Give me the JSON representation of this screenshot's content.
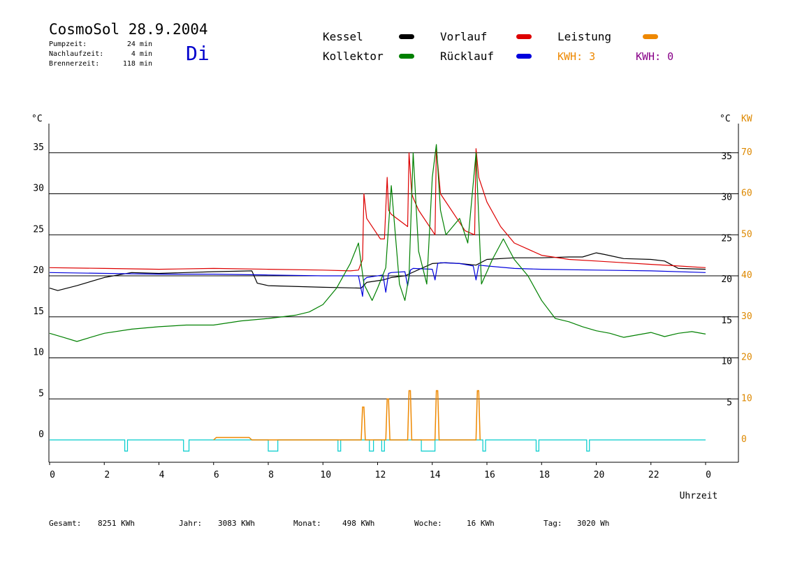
{
  "header": {
    "title": "CosmoSol 28.9.2004",
    "day": "Di",
    "stats": [
      {
        "label": "Pumpzeit:",
        "value": "24 min"
      },
      {
        "label": "Nachlaufzeit:",
        "value": "4 min"
      },
      {
        "label": "Brennerzeit:",
        "value": "118 min"
      }
    ]
  },
  "legend": {
    "kessel": {
      "label": "Kessel",
      "color": "#000000"
    },
    "kollektor": {
      "label": "Kollektor",
      "color": "#008000"
    },
    "vorlauf": {
      "label": "Vorlauf",
      "color": "#dd0000"
    },
    "ruecklauf": {
      "label": "Rücklauf",
      "color": "#0000dd"
    },
    "leistung": {
      "label": "Leistung",
      "color": "#ee8800"
    },
    "kwh1": {
      "text": "KWH: 3",
      "color": "#ee8800"
    },
    "kwh2": {
      "text": "KWH: 0",
      "color": "#880088"
    }
  },
  "footer": {
    "gesamt": {
      "label": "Gesamt:",
      "value": "8251 KWh"
    },
    "jahr": {
      "label": "Jahr:",
      "value": "3083 KWh"
    },
    "monat": {
      "label": "Monat:",
      "value": "498 KWh"
    },
    "woche": {
      "label": "Woche:",
      "value": "16 KWh"
    },
    "tag": {
      "label": "Tag:",
      "value": "3020 Wh"
    }
  },
  "chart_data": {
    "type": "line",
    "xlabel": "Uhrzeit",
    "ylabel_left": "°C",
    "ylabel_right": "°C",
    "ylabel_right2": "KW",
    "xlim": [
      0,
      24
    ],
    "ylim": [
      -2,
      40
    ],
    "grid": "horizontal",
    "x_ticks": [
      "0",
      "2",
      "4",
      "6",
      "8",
      "10",
      "12",
      "14",
      "16",
      "18",
      "20",
      "22",
      "0"
    ],
    "y_ticks_left": [
      "0",
      "5",
      "10",
      "15",
      "20",
      "25",
      "30",
      "35"
    ],
    "y_ticks_right": [
      "5",
      "10",
      "15",
      "20",
      "25",
      "30",
      "35"
    ],
    "y_ticks_kw": [
      "0",
      "10",
      "20",
      "30",
      "40",
      "50",
      "60",
      "70"
    ],
    "series": [
      {
        "name": "Kessel",
        "color": "#000000",
        "x": [
          0,
          0.3,
          1,
          2,
          3,
          4,
          6,
          7.4,
          7.6,
          8,
          10,
          11.4,
          11.6,
          12.2,
          12.5,
          13,
          14,
          14.5,
          15,
          15.6,
          16,
          17,
          18,
          19,
          19.5,
          20,
          20.3,
          21,
          22,
          22.5,
          23,
          24
        ],
        "y": [
          18.5,
          18.2,
          18.8,
          19.8,
          20.4,
          20.3,
          20.5,
          20.6,
          19.1,
          18.8,
          18.6,
          18.5,
          19.2,
          19.5,
          19.8,
          20.0,
          21.5,
          21.6,
          21.5,
          21.3,
          22.0,
          22.2,
          22.2,
          22.3,
          22.3,
          22.8,
          22.6,
          22.1,
          22.0,
          21.8,
          20.9,
          20.8
        ]
      },
      {
        "name": "Vorlauf",
        "color": "#dd0000",
        "x": [
          0,
          2,
          4,
          6,
          8,
          10,
          11,
          11.3,
          11.45,
          11.5,
          11.6,
          12.1,
          12.25,
          12.35,
          12.4,
          12.5,
          13.1,
          13.15,
          13.25,
          13.3,
          13.5,
          14.0,
          14.1,
          14.15,
          14.3,
          14.8,
          15.2,
          15.55,
          15.6,
          15.7,
          16,
          16.5,
          17,
          18,
          19,
          20,
          21,
          22,
          23,
          24
        ],
        "y": [
          21.0,
          20.9,
          20.8,
          20.9,
          20.8,
          20.7,
          20.6,
          20.7,
          22,
          30,
          27,
          24.5,
          24.5,
          32,
          28,
          27.5,
          26,
          35,
          30,
          29.5,
          28,
          25.5,
          25,
          35.5,
          30,
          27.5,
          25.5,
          25,
          35.5,
          32,
          29,
          26,
          24,
          22.5,
          22,
          21.8,
          21.6,
          21.4,
          21.2,
          21.0
        ]
      },
      {
        "name": "Rücklauf",
        "color": "#0000dd",
        "x": [
          0,
          2,
          4,
          6,
          8,
          10,
          11.3,
          11.45,
          11.5,
          11.6,
          12.2,
          12.3,
          12.4,
          12.5,
          13,
          13.1,
          13.2,
          13.3,
          14,
          14.1,
          14.2,
          14.3,
          15,
          15.5,
          15.6,
          15.7,
          16,
          17,
          18,
          20,
          22,
          24
        ],
        "y": [
          20.4,
          20.3,
          20.2,
          20.2,
          20.1,
          20.0,
          20.0,
          17.5,
          19.5,
          19.8,
          20.1,
          18,
          20.3,
          20.4,
          20.5,
          18.8,
          20.7,
          20.9,
          20.8,
          19.5,
          21.5,
          21.6,
          21.5,
          21.2,
          19.5,
          21.3,
          21.2,
          20.9,
          20.8,
          20.7,
          20.6,
          20.4
        ]
      },
      {
        "name": "Kollektor",
        "color": "#008000",
        "x": [
          0,
          0.5,
          1,
          1.5,
          2,
          3,
          4,
          5,
          6,
          7,
          8,
          9,
          9.5,
          10,
          10.5,
          11,
          11.3,
          11.5,
          11.8,
          12,
          12.3,
          12.5,
          12.8,
          13.0,
          13.15,
          13.3,
          13.5,
          13.8,
          14.0,
          14.15,
          14.3,
          14.5,
          15,
          15.3,
          15.6,
          15.8,
          16.2,
          16.6,
          17,
          17.5,
          18,
          18.5,
          19,
          19.5,
          20,
          20.5,
          21,
          21.5,
          22,
          22.5,
          23,
          23.5,
          24
        ],
        "y": [
          13,
          12.5,
          12,
          12.5,
          13,
          13.5,
          13.8,
          14,
          14,
          14.5,
          14.8,
          15.2,
          15.6,
          16.5,
          18.5,
          21.5,
          24,
          19,
          17,
          18.5,
          21,
          31,
          19,
          17,
          20,
          35,
          23,
          19,
          32,
          36,
          28,
          25,
          27,
          24,
          35,
          19,
          22,
          24.5,
          22,
          20,
          17,
          14.8,
          14.4,
          13.8,
          13.3,
          13,
          12.5,
          12.8,
          13.1,
          12.6,
          13.0,
          13.2,
          12.9
        ]
      }
    ],
    "power": {
      "name": "Leistung",
      "unit": "KW",
      "x": [
        6,
        6.1,
        7.3,
        7.4,
        11.4,
        11.45,
        11.5,
        11.55,
        12.3,
        12.35,
        12.4,
        12.45,
        13.1,
        13.15,
        13.2,
        13.25,
        14.1,
        14.15,
        14.2,
        14.25,
        15.6,
        15.65,
        15.7,
        15.75
      ],
      "y": [
        0,
        0.6,
        0.6,
        0,
        0,
        8,
        8,
        0,
        0,
        10,
        10,
        0,
        0,
        12,
        12,
        0,
        0,
        12,
        12,
        0,
        0,
        12,
        12,
        0
      ]
    },
    "pump_pulses": {
      "color": "#00cccc",
      "intervals": [
        [
          2.75,
          2.85
        ],
        [
          4.9,
          5.1
        ],
        [
          8.0,
          8.35
        ],
        [
          10.55,
          10.65
        ],
        [
          11.7,
          11.85
        ],
        [
          12.15,
          12.25
        ],
        [
          13.6,
          14.1
        ],
        [
          15.85,
          15.95
        ],
        [
          17.8,
          17.9
        ],
        [
          19.65,
          19.75
        ]
      ]
    }
  }
}
